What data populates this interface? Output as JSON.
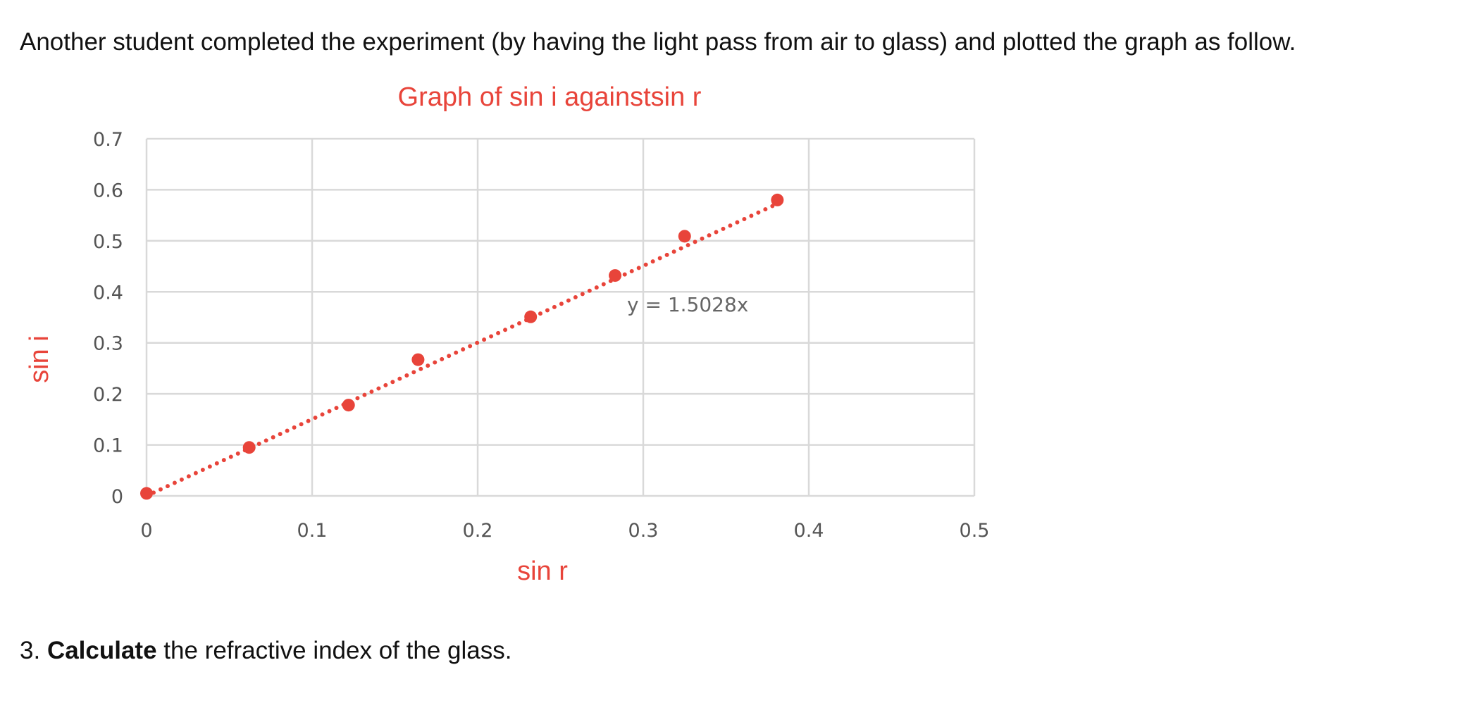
{
  "intro_text": "Another student completed the experiment (by having the light pass from air to glass) and plotted the graph as follow.",
  "question": {
    "number": "3.",
    "bold": "Calculate",
    "rest": " the refractive index of the glass."
  },
  "chart_data": {
    "type": "scatter",
    "title": "Graph of sin i againstsin r",
    "xlabel": "sin r",
    "ylabel": "sin i",
    "xlim": [
      0,
      0.5
    ],
    "ylim": [
      0,
      0.7
    ],
    "x_ticks": [
      "0",
      "0.1",
      "0.2",
      "0.3",
      "0.4",
      "0.5"
    ],
    "y_ticks": [
      "0",
      "0.1",
      "0.2",
      "0.3",
      "0.4",
      "0.5",
      "0.6",
      "0.7"
    ],
    "grid": true,
    "series": [
      {
        "x": [
          0,
          0.062,
          0.122,
          0.164,
          0.232,
          0.283,
          0.325,
          0.381
        ],
        "y": [
          0.005,
          0.095,
          0.178,
          0.267,
          0.351,
          0.432,
          0.509,
          0.58
        ]
      }
    ],
    "trendline": {
      "type": "linear",
      "slope": 1.5028,
      "intercept": 0,
      "x_range": [
        0,
        0.381
      ],
      "equation_label": "y = 1.5028x",
      "style": "dotted"
    },
    "colors": {
      "points": "#e8443a",
      "title": "#e8443a",
      "grid": "#d9d9d9",
      "ticks": "#555555"
    }
  }
}
